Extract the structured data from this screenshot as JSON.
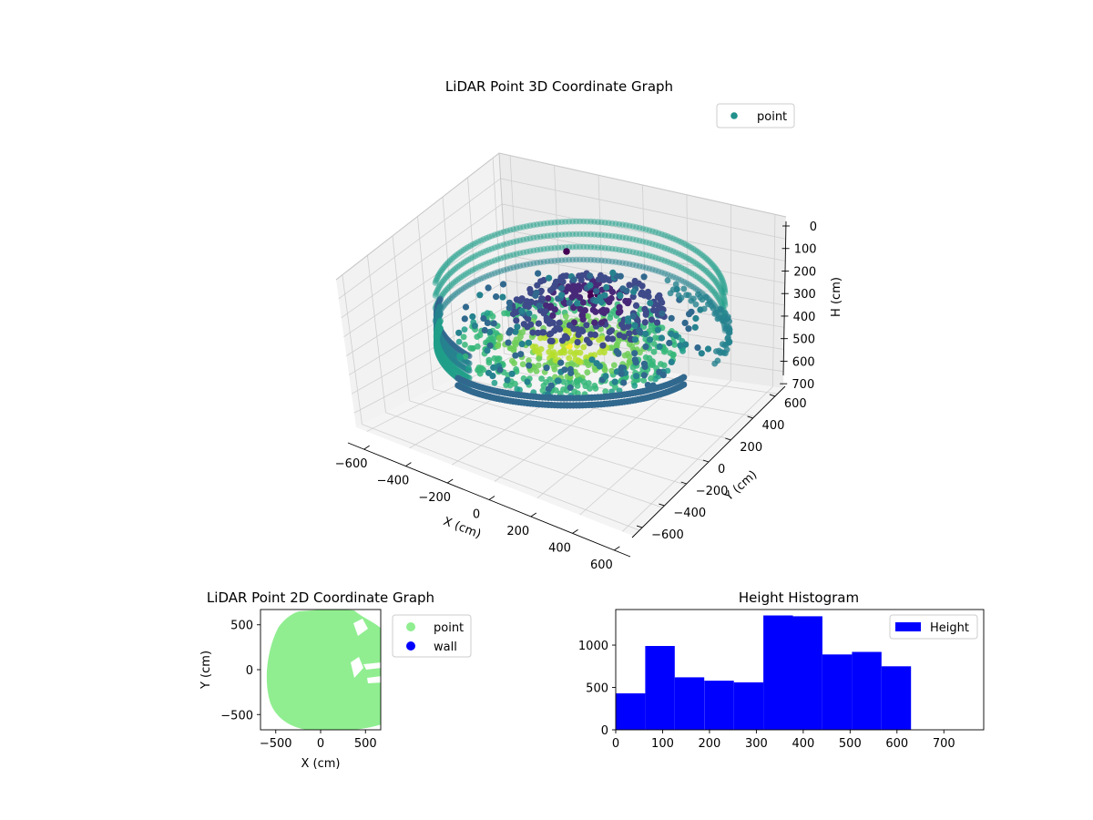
{
  "chart_data": [
    {
      "type": "scatter3d",
      "title": "LiDAR Point 3D Coordinate Graph",
      "xlabel": "X (cm)",
      "ylabel": "Y (cm)",
      "zlabel": "H (cm)",
      "x_ticks": [
        -600,
        -400,
        -200,
        0,
        200,
        400,
        600
      ],
      "y_ticks": [
        -600,
        -400,
        -200,
        0,
        200,
        400,
        600
      ],
      "z_ticks": [
        0,
        100,
        200,
        300,
        400,
        500,
        600,
        700
      ],
      "xlim": [
        -650,
        650
      ],
      "ylim": [
        -650,
        650
      ],
      "zlim": [
        0,
        760
      ],
      "z_inverted": true,
      "colormap": "viridis",
      "grid": true,
      "legend": {
        "placement": "top-right",
        "entries": [
          {
            "label": "point",
            "color": "#21918c"
          }
        ]
      },
      "series": [
        {
          "name": "point"
        }
      ]
    },
    {
      "type": "scatter",
      "title": "LiDAR Point 2D Coordinate Graph",
      "xlabel": "X (cm)",
      "ylabel": "Y (cm)",
      "x_ticks": [
        -500,
        0,
        500
      ],
      "y_ticks": [
        -500,
        0,
        500
      ],
      "xlim": [
        -670,
        670
      ],
      "ylim": [
        -670,
        670
      ],
      "legend": {
        "placement": "outside-right",
        "entries": [
          {
            "label": "point",
            "color": "#90ee90"
          },
          {
            "label": "wall",
            "color": "#0000ff"
          }
        ]
      },
      "series": [
        {
          "name": "point",
          "color": "#90ee90",
          "approx_extent_radius": 600
        },
        {
          "name": "wall",
          "color": "#0000ff",
          "points": []
        }
      ]
    },
    {
      "type": "bar",
      "title": "Height Histogram",
      "xlabel": "",
      "ylabel": "",
      "bin_edges": [
        0,
        63,
        126,
        189,
        252,
        315,
        378,
        441,
        504,
        567,
        630
      ],
      "values": [
        430,
        990,
        620,
        580,
        560,
        1350,
        1340,
        890,
        920,
        750
      ],
      "x_ticks": [
        0,
        100,
        200,
        300,
        400,
        500,
        600,
        700
      ],
      "y_ticks": [
        0,
        500,
        1000
      ],
      "xlim": [
        0,
        785
      ],
      "ylim": [
        0,
        1420
      ],
      "color": "#0000ff",
      "legend": {
        "placement": "top-right",
        "entries": [
          {
            "label": "Height",
            "color": "#0000ff"
          }
        ]
      },
      "series": [
        {
          "name": "Height"
        }
      ]
    }
  ]
}
